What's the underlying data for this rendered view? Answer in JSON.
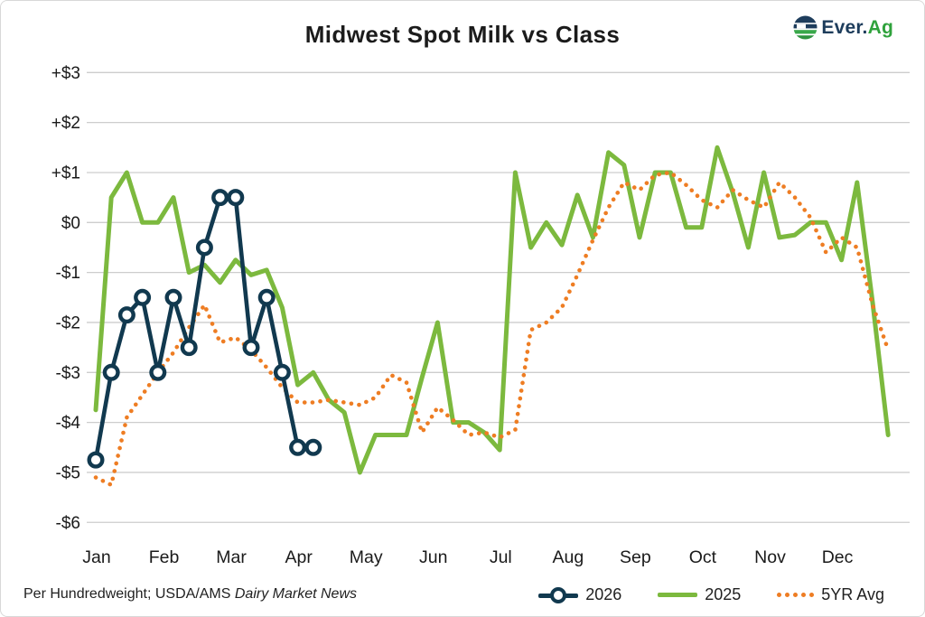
{
  "header": {
    "title": "Midwest Spot Milk vs Class",
    "logo": {
      "brand_primary": "Ever.",
      "brand_secondary": "Ag"
    }
  },
  "footer": {
    "note_regular": "Per Hundredweight; USDA/AMS ",
    "note_italic": "Dairy Market News"
  },
  "colors": {
    "navy": "#11394f",
    "green": "#7cb93e",
    "orange": "#ee7d23",
    "gridline": "#cdcdcd",
    "text": "#1a1a1a"
  },
  "chart_data": {
    "type": "line",
    "title": "Midwest Spot Milk vs Class",
    "x_unit": "weeks (52 per year)",
    "months": [
      "Jan",
      "Feb",
      "Mar",
      "Apr",
      "May",
      "Jun",
      "Jul",
      "Aug",
      "Sep",
      "Oct",
      "Nov",
      "Dec"
    ],
    "y_ticks": [
      {
        "label": "+$3",
        "value": 3
      },
      {
        "label": "+$2",
        "value": 2
      },
      {
        "label": "+$1",
        "value": 1
      },
      {
        "label": "$0",
        "value": 0
      },
      {
        "label": "-$1",
        "value": -1
      },
      {
        "label": "-$2",
        "value": -2
      },
      {
        "label": "-$3",
        "value": -3
      },
      {
        "label": "-$4",
        "value": -4
      },
      {
        "label": "-$5",
        "value": -5
      },
      {
        "label": "-$6",
        "value": -6
      }
    ],
    "ylim": [
      -6,
      3
    ],
    "grid": true,
    "legend_position": "bottom-right",
    "series": [
      {
        "name": "2025",
        "style": "solid",
        "color": "#7cb93e",
        "values": [
          -3.75,
          0.5,
          1.0,
          0.0,
          0.0,
          0.5,
          -1.0,
          -0.85,
          -1.2,
          -0.75,
          -1.05,
          -0.95,
          -1.7,
          -3.25,
          -3.0,
          -3.55,
          -3.8,
          -5.0,
          -4.25,
          -4.25,
          -4.25,
          -3.1,
          -2.0,
          -4.0,
          -4.0,
          -4.2,
          -4.55,
          1.0,
          -0.5,
          0.0,
          -0.45,
          0.55,
          -0.3,
          1.4,
          1.15,
          -0.3,
          1.0,
          1.0,
          -0.1,
          -0.1,
          1.5,
          0.6,
          -0.5,
          1.0,
          -0.3,
          -0.25,
          0.0,
          0.0,
          -0.75,
          0.8,
          -1.6,
          -4.25
        ]
      },
      {
        "name": "5YR Avg",
        "style": "dotted",
        "color": "#ee7d23",
        "values": [
          -5.1,
          -5.25,
          -3.9,
          -3.45,
          -3.0,
          -2.6,
          -2.1,
          -1.65,
          -2.4,
          -2.3,
          -2.55,
          -2.9,
          -3.3,
          -3.6,
          -3.6,
          -3.55,
          -3.6,
          -3.65,
          -3.5,
          -3.05,
          -3.2,
          -4.2,
          -3.7,
          -3.95,
          -4.25,
          -4.2,
          -4.3,
          -4.15,
          -2.15,
          -2.0,
          -1.7,
          -1.05,
          -0.35,
          0.3,
          0.8,
          0.65,
          0.95,
          1.0,
          0.75,
          0.45,
          0.3,
          0.65,
          0.45,
          0.3,
          0.8,
          0.5,
          0.1,
          -0.6,
          -0.3,
          -0.5,
          -1.65,
          -2.55
        ]
      },
      {
        "name": "2026",
        "style": "solid-markers",
        "color": "#11394f",
        "values": [
          -4.75,
          -3.0,
          -1.85,
          -1.5,
          -3.0,
          -1.5,
          -2.5,
          -0.5,
          0.5,
          0.5,
          -2.5,
          -1.5,
          -3.0,
          -4.5,
          -4.5
        ]
      }
    ]
  }
}
